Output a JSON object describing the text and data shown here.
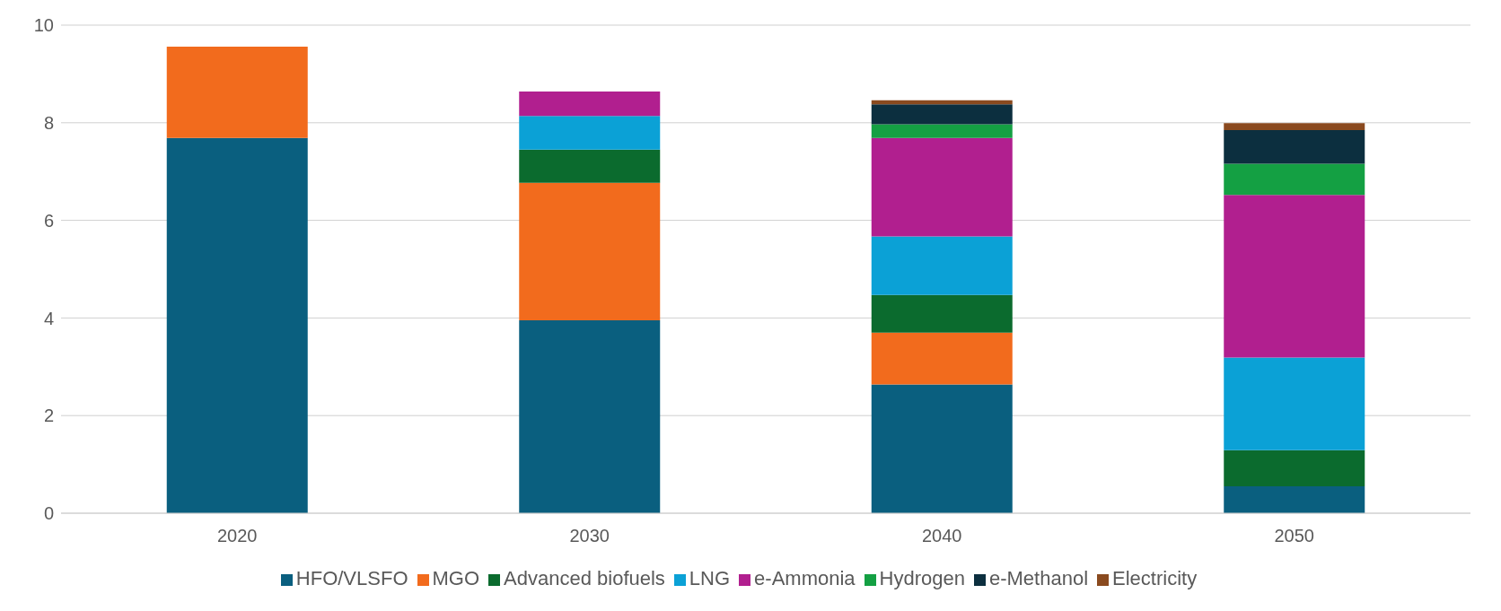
{
  "chart_data": {
    "type": "bar",
    "stacked": true,
    "categories": [
      "2020",
      "2030",
      "2040",
      "2050"
    ],
    "series": [
      {
        "name": "HFO/VLSFO",
        "color": "#0a5f7f",
        "values": [
          7.69,
          3.95,
          2.64,
          0.55
        ]
      },
      {
        "name": "MGO",
        "color": "#f26b1d",
        "values": [
          1.87,
          2.82,
          1.06,
          0
        ]
      },
      {
        "name": "Advanced biofuels",
        "color": "#0b6b2e",
        "values": [
          0,
          0.68,
          0.77,
          0.74
        ]
      },
      {
        "name": "LNG",
        "color": "#0ba1d6",
        "values": [
          0,
          0.69,
          1.2,
          1.9
        ]
      },
      {
        "name": "e-Ammonia",
        "color": "#b11f8f",
        "values": [
          0,
          0.5,
          2.02,
          3.33
        ]
      },
      {
        "name": "Hydrogen",
        "color": "#14a043",
        "values": [
          0,
          0,
          0.28,
          0.64
        ]
      },
      {
        "name": "e-Methanol",
        "color": "#0c2f3f",
        "values": [
          0,
          0,
          0.41,
          0.69
        ]
      },
      {
        "name": "Electricity",
        "color": "#8a4a1f",
        "values": [
          0,
          0,
          0.08,
          0.14
        ]
      }
    ],
    "ylim": [
      0,
      10
    ],
    "yticks": [
      0,
      2,
      4,
      6,
      8,
      10
    ],
    "grid": "y",
    "legend": "bottom"
  }
}
